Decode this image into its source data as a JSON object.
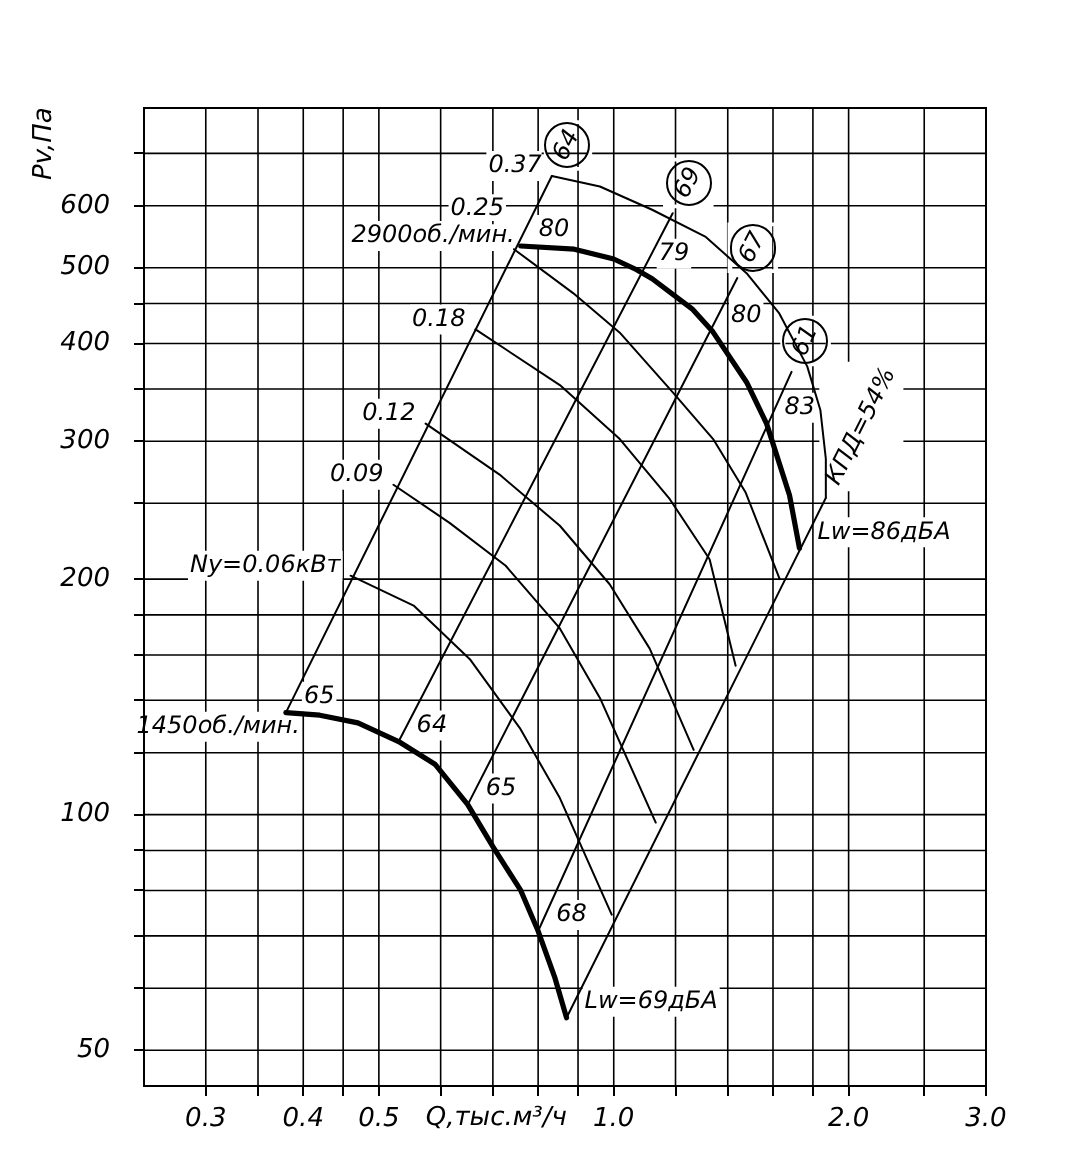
{
  "chart_data": {
    "type": "line",
    "xlabel": "Q,тыс.м³/ч",
    "ylabel": "Pv,Па",
    "log": "xy",
    "xlim": [
      0.25,
      3
    ],
    "ylim": [
      45,
      800
    ],
    "xticks": [
      0.3,
      {
        "value": 0.35,
        "label": null
      },
      0.4,
      {
        "value": 0.45,
        "label": null
      },
      0.5,
      {
        "value": 0.6,
        "label": null
      },
      {
        "value": 0.7,
        "label": null
      },
      {
        "value": 0.8,
        "label": null
      },
      {
        "value": 0.9,
        "label": null
      },
      {
        "value": 1,
        "label": "1.0"
      },
      {
        "value": 1.2,
        "label": null
      },
      {
        "value": 1.4,
        "label": null
      },
      {
        "value": 1.6,
        "label": null
      },
      {
        "value": 1.8,
        "label": null
      },
      {
        "value": 2,
        "label": "2.0"
      },
      {
        "value": 2.5,
        "label": null
      },
      {
        "value": 3,
        "label": "3.0"
      }
    ],
    "yticks": [
      50,
      {
        "value": 60,
        "label": null
      },
      {
        "value": 70,
        "label": null
      },
      {
        "value": 80,
        "label": null
      },
      {
        "value": 90,
        "label": null
      },
      100,
      {
        "value": 120,
        "label": null
      },
      {
        "value": 140,
        "label": null
      },
      {
        "value": 160,
        "label": null
      },
      {
        "value": 180,
        "label": null
      },
      200,
      {
        "value": 250,
        "label": null
      },
      300,
      {
        "value": 350,
        "label": null
      },
      400,
      {
        "value": 450,
        "label": null
      },
      500,
      600,
      {
        "value": 700,
        "label": null
      }
    ],
    "grid": true,
    "series": [
      {
        "name": "2900об./мин.",
        "color": "#000000",
        "x": [
          0.76,
          0.89,
          1.0,
          1.07,
          1.12,
          1.26,
          1.34,
          1.48,
          1.57,
          1.68,
          1.73
        ],
        "values": [
          533,
          528,
          513,
          497,
          484,
          443,
          414,
          357,
          316,
          256,
          219
        ]
      },
      {
        "name": "1450об./мин.",
        "color": "#000000",
        "x": [
          0.38,
          0.42,
          0.47,
          0.53,
          0.59,
          0.65,
          0.7,
          0.76,
          0.8,
          0.84,
          0.87
        ],
        "values": [
          135,
          134,
          131,
          124,
          116,
          103,
          91,
          80,
          71,
          62,
          55
        ]
      },
      {
        "name": "64",
        "color": "#000000",
        "x": [
          0.38,
          0.833
        ],
        "values": [
          135,
          655
        ]
      },
      {
        "name": "69",
        "color": "#000000",
        "x": [
          0.53,
          1.19
        ],
        "values": [
          124,
          587
        ]
      },
      {
        "name": "67",
        "color": "#000000",
        "x": [
          0.65,
          1.44
        ],
        "values": [
          103,
          485
        ]
      },
      {
        "name": "61",
        "color": "#000000",
        "x": [
          0.8,
          1.69
        ],
        "values": [
          71,
          368
        ]
      },
      {
        "name": "КПД=54%",
        "color": "#000000",
        "x": [
          0.87,
          1.87
        ],
        "values": [
          55,
          254
        ]
      },
      {
        "name": "0.37",
        "color": "#000000",
        "x": [
          0.833,
          0.96,
          1.12,
          1.31,
          1.48,
          1.63,
          1.77,
          1.84,
          1.87,
          1.87
        ],
        "values": [
          655,
          635,
          593,
          548,
          492,
          437,
          374,
          329,
          285,
          254
        ]
      },
      {
        "name": "0.25",
        "color": "#000000",
        "x": [
          0.745,
          0.887,
          1.018,
          1.192,
          1.341,
          1.476,
          1.632
        ],
        "values": [
          528,
          464,
          413,
          346,
          302,
          258,
          200
        ]
      },
      {
        "name": "0.18",
        "color": "#000000",
        "x": [
          0.665,
          0.853,
          1.018,
          1.18,
          1.327,
          1.433
        ],
        "values": [
          417,
          354,
          302,
          253,
          212,
          155
        ]
      },
      {
        "name": "0.12",
        "color": "#000000",
        "x": [
          0.574,
          0.714,
          0.853,
          0.988,
          1.112,
          1.266
        ],
        "values": [
          316,
          272,
          234,
          197,
          163,
          121
        ]
      },
      {
        "name": "0.09",
        "color": "#000000",
        "x": [
          0.522,
          0.616,
          0.727,
          0.853,
          0.96,
          1.132
        ],
        "values": [
          264,
          236,
          208,
          173,
          141,
          97.7
        ]
      },
      {
        "name": "Ny=0.06кВт",
        "color": "#000000",
        "x": [
          0.46,
          0.554,
          0.654,
          0.758,
          0.853,
          0.994
        ],
        "values": [
          202,
          185,
          158,
          129,
          105,
          74.5
        ]
      }
    ],
    "annotations": [
      {
        "text": "80",
        "x": 0.76,
        "y": 533
      },
      {
        "text": "79",
        "x": 1.07,
        "y": 497
      },
      {
        "text": "80",
        "x": 1.34,
        "y": 414
      },
      {
        "text": "83",
        "x": 1.57,
        "y": 316
      },
      {
        "text": "Lw=86дБА",
        "x": 1.73,
        "y": 219
      },
      {
        "text": "65",
        "x": 0.38,
        "y": 135
      },
      {
        "text": "64",
        "x": 0.53,
        "y": 124
      },
      {
        "text": "65",
        "x": 0.65,
        "y": 103
      },
      {
        "text": "68",
        "x": 0.8,
        "y": 71
      },
      {
        "text": "Lw=69дБА",
        "x": 0.87,
        "y": 55
      }
    ]
  }
}
